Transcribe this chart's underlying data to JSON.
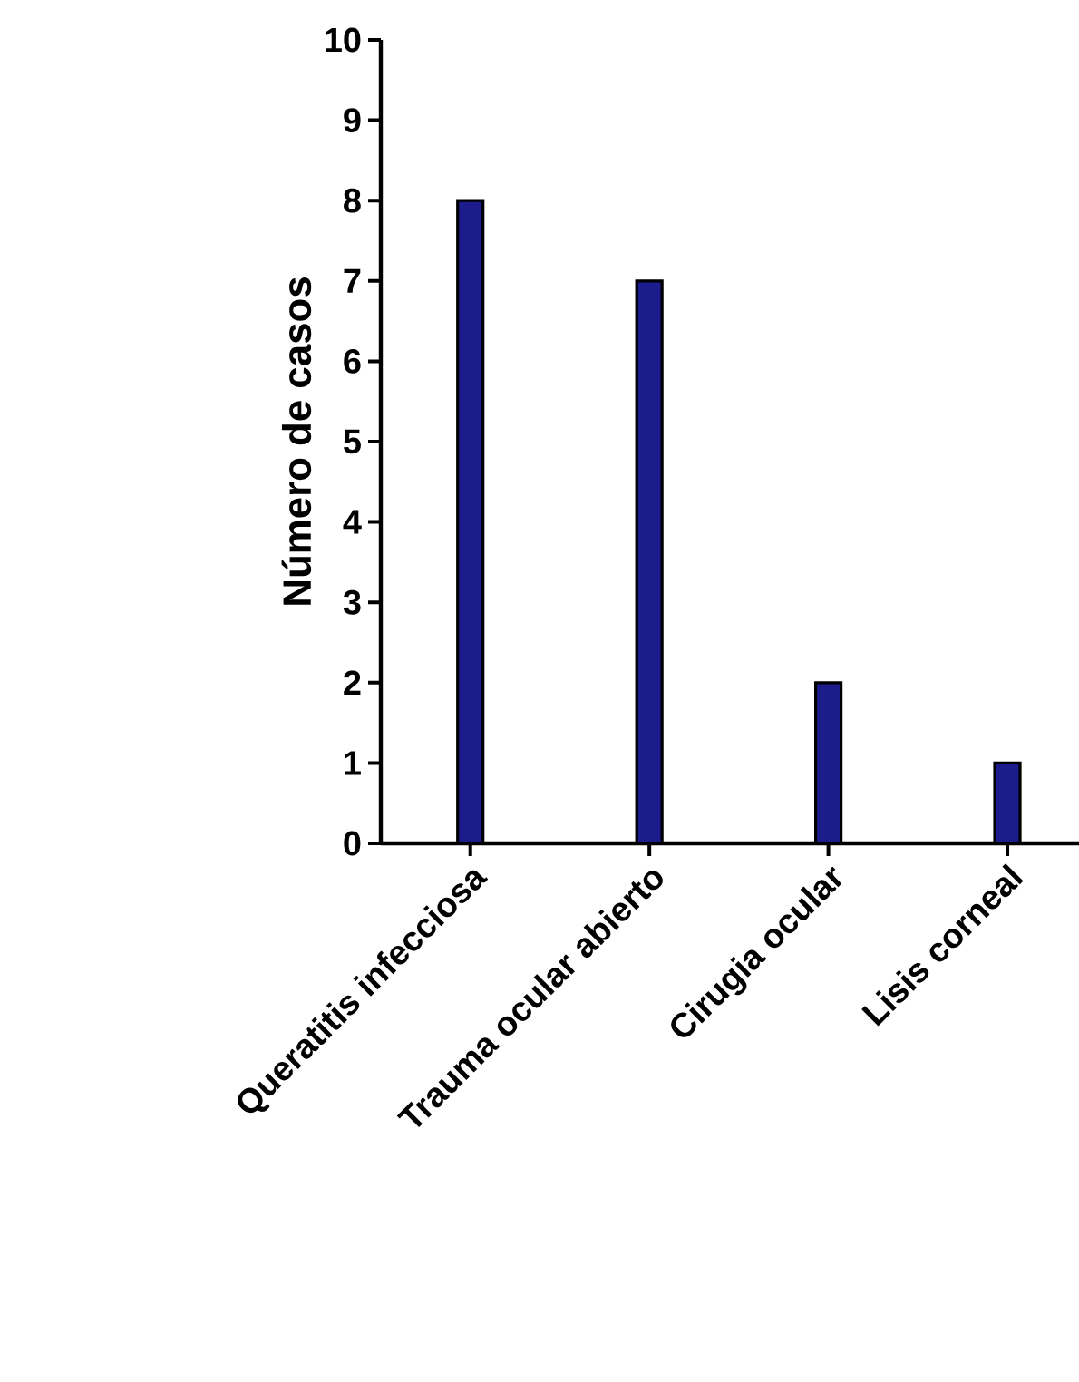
{
  "chart_data": {
    "type": "bar",
    "ylabel": "Número de casos",
    "categories": [
      "Queratitis infecciosa",
      "Trauma ocular abierto",
      "Cirugia ocular",
      "Lisis corneal"
    ],
    "values": [
      8,
      7,
      2,
      1
    ],
    "color": "#1c1c8c",
    "ylim": [
      0,
      10
    ],
    "yticks": [
      0,
      1,
      2,
      3,
      4,
      5,
      6,
      7,
      8,
      9,
      10
    ]
  }
}
